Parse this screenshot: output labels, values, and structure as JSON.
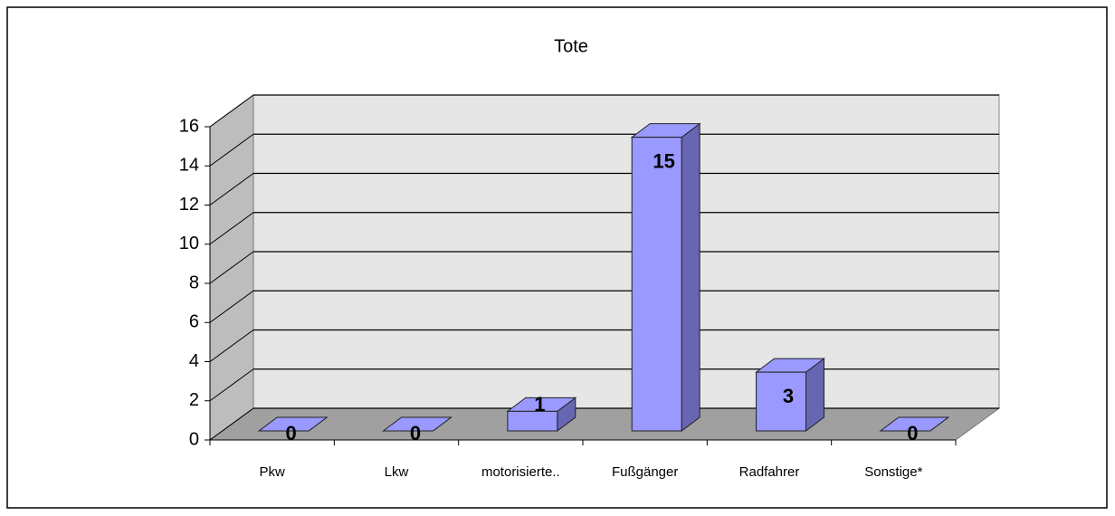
{
  "chart_data": {
    "type": "bar3d",
    "title": "Tote",
    "categories": [
      "Pkw",
      "Lkw",
      "motorisierte..",
      "Fußgänger",
      "Radfahrer",
      "Sonstige*"
    ],
    "values": [
      0,
      0,
      1,
      15,
      3,
      0
    ],
    "color": "#9999ff",
    "ylim": [
      0,
      16
    ],
    "yticks": [
      0,
      2,
      4,
      6,
      8,
      10,
      12,
      14,
      16
    ],
    "grid": true
  }
}
